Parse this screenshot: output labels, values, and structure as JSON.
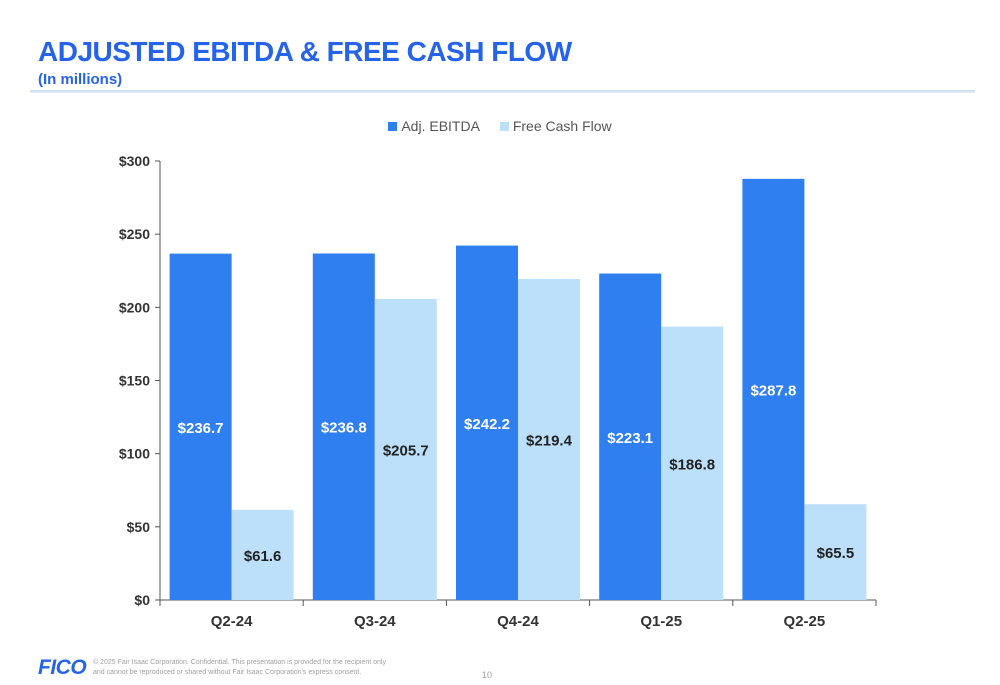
{
  "header": {
    "title": "ADJUSTED EBITDA & FREE CASH FLOW",
    "subtitle": "(In millions)"
  },
  "colors": {
    "brand": "#2563eb",
    "ebitda": "#2f7ff0",
    "fcf": "#bde0fa"
  },
  "chart_data": {
    "type": "bar",
    "categories": [
      "Q2-24",
      "Q3-24",
      "Q4-24",
      "Q1-25",
      "Q2-25"
    ],
    "series": [
      {
        "name": "Adj. EBITDA",
        "values": [
          236.7,
          236.8,
          242.2,
          223.1,
          287.8
        ],
        "labels": [
          "$236.7",
          "$236.8",
          "$242.2",
          "$223.1",
          "$287.8"
        ]
      },
      {
        "name": "Free Cash Flow",
        "values": [
          61.6,
          205.7,
          219.4,
          186.8,
          65.5
        ],
        "labels": [
          "$61.6",
          "$205.7",
          "$219.4",
          "$186.8",
          "$65.5"
        ]
      }
    ],
    "y_ticks": [
      "$0",
      "$50",
      "$100",
      "$150",
      "$200",
      "$250",
      "$300"
    ],
    "ylim": [
      0,
      300
    ],
    "legend_position": "top-center",
    "grid": false
  },
  "footer": {
    "logo": "FICO",
    "copyright": "© 2025 Fair Isaac Corporation. Confidential. This presentation is provided for the recipient only and cannot be reproduced or shared without Fair Isaac Corporation's express consent.",
    "page_number": "10"
  }
}
